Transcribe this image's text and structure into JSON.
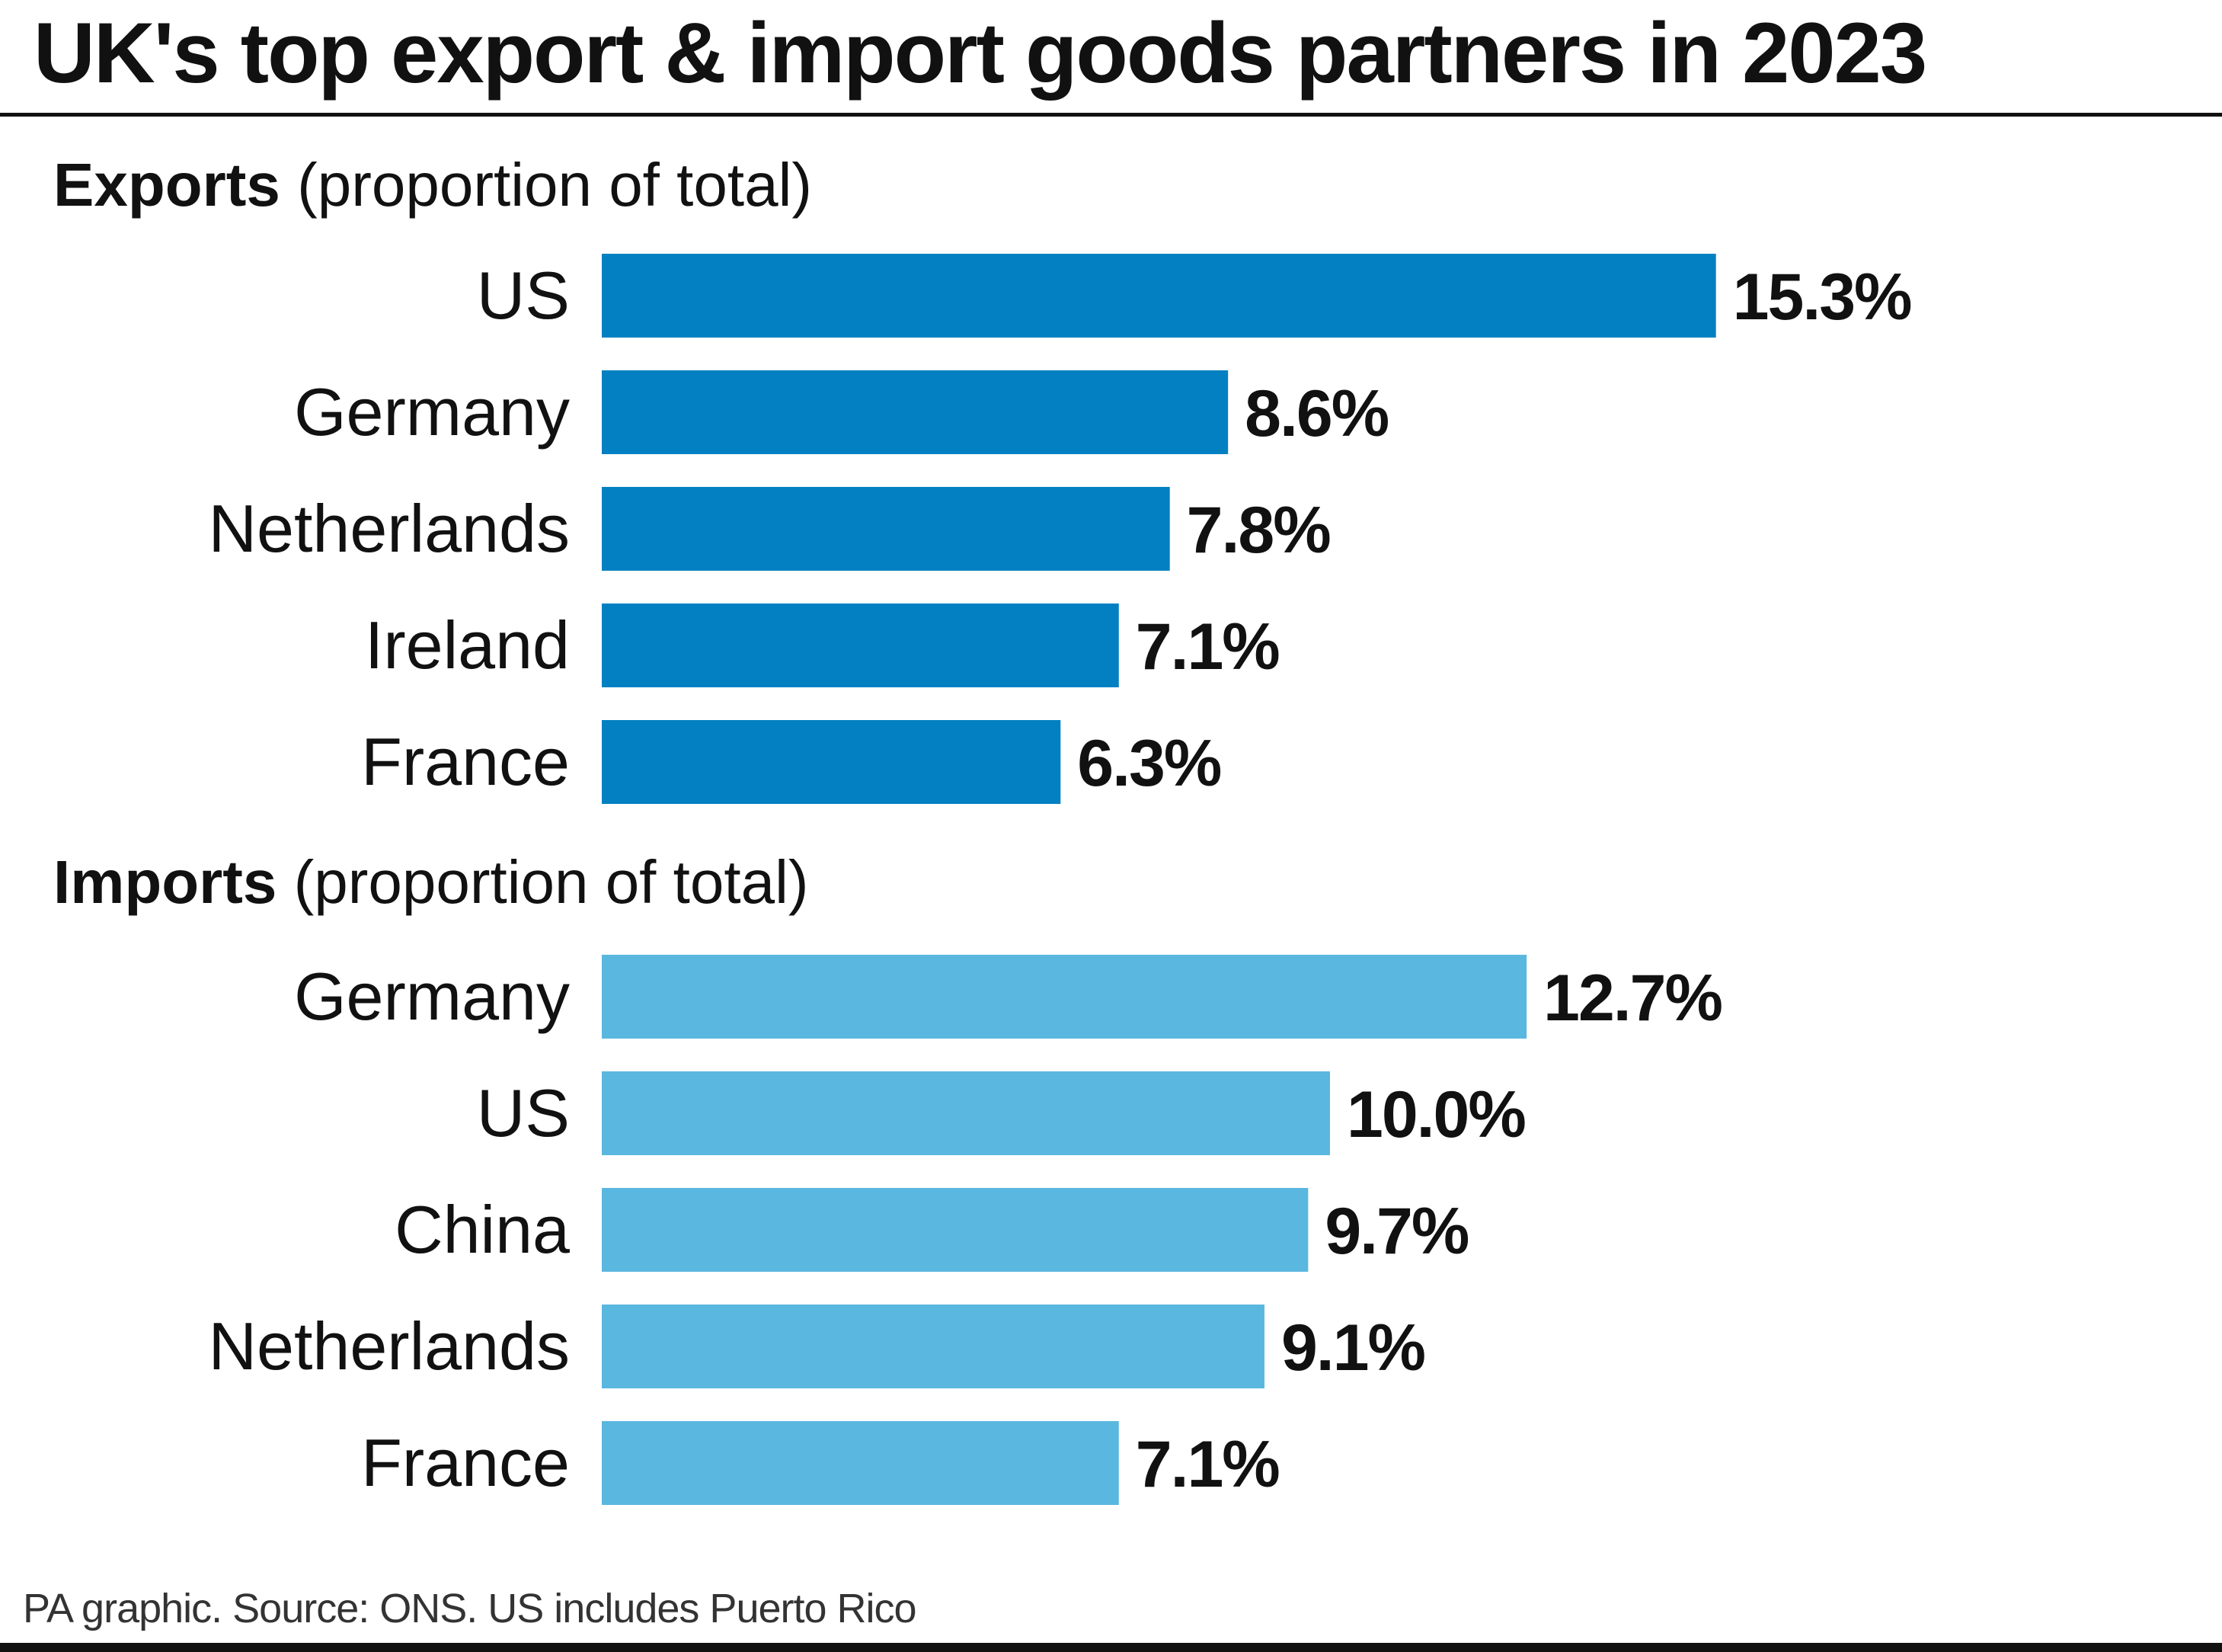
{
  "title": "UK's top export & import goods partners in 2023",
  "source": "PA graphic. Source: ONS. US includes Puerto Rico",
  "colors": {
    "exports": "#0280c1",
    "imports": "#5ab7df",
    "text": "#111111"
  },
  "chart_data": [
    {
      "type": "bar",
      "orientation": "horizontal",
      "title_bold": "Exports",
      "title_rest": " (proportion of total)",
      "categories": [
        "US",
        "Germany",
        "Netherlands",
        "Ireland",
        "France"
      ],
      "values": [
        15.3,
        8.6,
        7.8,
        7.1,
        6.3
      ],
      "value_labels": [
        "15.3%",
        "8.6%",
        "7.8%",
        "7.1%",
        "6.3%"
      ],
      "unit": "%",
      "color": "#0280c1",
      "grid": false
    },
    {
      "type": "bar",
      "orientation": "horizontal",
      "title_bold": "Imports",
      "title_rest": " (proportion of total)",
      "categories": [
        "Germany",
        "US",
        "China",
        "Netherlands",
        "France"
      ],
      "values": [
        12.7,
        10.0,
        9.7,
        9.1,
        7.1
      ],
      "value_labels": [
        "12.7%",
        "10.0%",
        "9.7%",
        "9.1%",
        "7.1%"
      ],
      "unit": "%",
      "color": "#5ab7df",
      "grid": false
    }
  ]
}
